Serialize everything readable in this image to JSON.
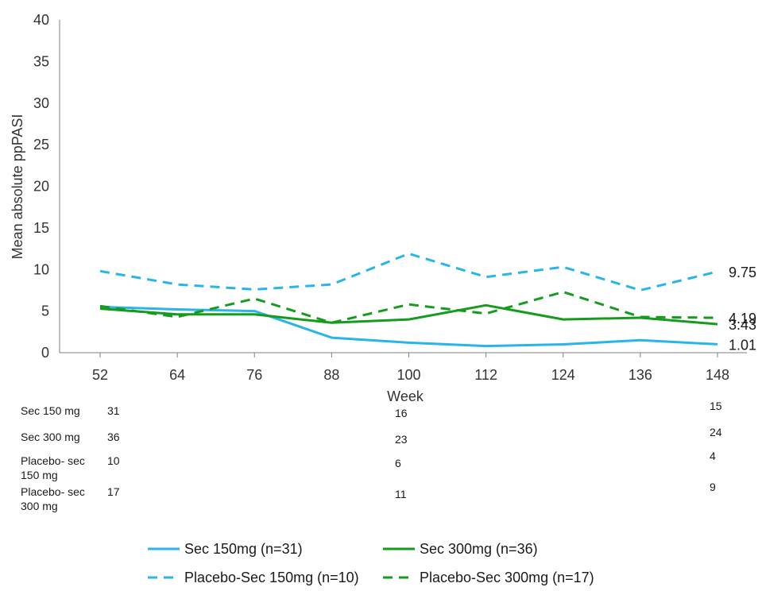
{
  "chart_data": {
    "type": "line",
    "title": "",
    "xlabel": "Week",
    "ylabel": "Mean absolute ppPASI",
    "x": [
      52,
      64,
      76,
      88,
      100,
      112,
      124,
      136,
      148
    ],
    "xticks": [
      "52",
      "64",
      "76",
      "88",
      "100",
      "112",
      "124",
      "136",
      "148"
    ],
    "ylim": [
      0,
      40
    ],
    "yticks": [
      "0",
      "5",
      "10",
      "15",
      "20",
      "25",
      "30",
      "35",
      "40"
    ],
    "grid": false,
    "legend_position": "bottom",
    "series": [
      {
        "name": "Sec 150mg (n=31)",
        "color": "#29B5E8",
        "dash": "solid",
        "values": [
          5.5,
          5.2,
          5.0,
          1.8,
          1.2,
          0.8,
          1.0,
          1.5,
          1.01
        ],
        "end_label": "1.01"
      },
      {
        "name": "Sec 300mg (n=36)",
        "color": "#179B1E",
        "dash": "solid",
        "values": [
          5.3,
          4.6,
          4.6,
          3.6,
          4.0,
          5.7,
          4.0,
          4.2,
          3.43
        ],
        "end_label": "3.43"
      },
      {
        "name": "Placebo-Sec 150mg (n=10)",
        "color": "#29B5E8",
        "dash": "dashed",
        "values": [
          9.8,
          8.2,
          7.6,
          8.2,
          11.9,
          9.1,
          10.3,
          7.5,
          9.75
        ],
        "end_label": "9.75"
      },
      {
        "name": "Placebo-Sec 300mg (n=17)",
        "color": "#179B1E",
        "dash": "dashed",
        "values": [
          5.6,
          4.3,
          6.5,
          3.6,
          5.8,
          4.7,
          7.3,
          4.3,
          4.19
        ],
        "end_label": "4.19"
      }
    ],
    "number_at_risk": {
      "rows": [
        {
          "label_lines": [
            "Sec 150 mg"
          ],
          "values": [
            "31",
            "16",
            "15"
          ]
        },
        {
          "label_lines": [
            "Sec 300 mg"
          ],
          "values": [
            "36",
            "23",
            "24"
          ]
        },
        {
          "label_lines": [
            "Placebo- sec",
            "150 mg"
          ],
          "values": [
            "10",
            "6",
            "4"
          ]
        },
        {
          "label_lines": [
            "Placebo- sec",
            "300 mg"
          ],
          "values": [
            "17",
            "11",
            "9"
          ]
        }
      ]
    }
  }
}
